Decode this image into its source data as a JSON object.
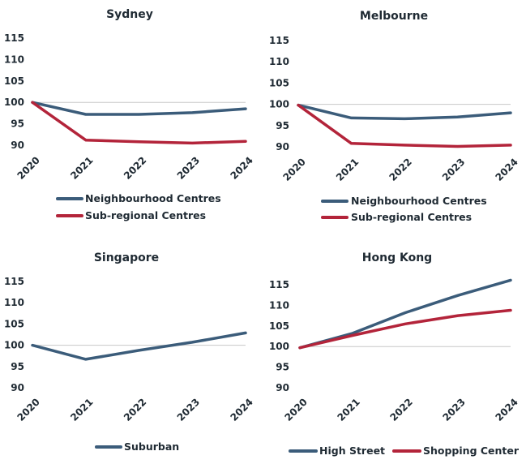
{
  "chart_data": [
    {
      "type": "line",
      "title": "Sydney",
      "categories": [
        "2020",
        "2021",
        "2022",
        "2023",
        "2024"
      ],
      "y_ticks": [
        "115",
        "110",
        "105",
        "100",
        "95",
        "90"
      ],
      "ylim": [
        90,
        115
      ],
      "reference_line": 100,
      "legend_position": "bottom",
      "series": [
        {
          "name": "Neighbourhood Centres",
          "color": "#3b5c7a",
          "values": [
            100,
            97.2,
            97.2,
            97.6,
            98.5
          ]
        },
        {
          "name": "Sub-regional Centres",
          "color": "#b3243a",
          "values": [
            100,
            91.2,
            90.8,
            90.5,
            90.9
          ]
        }
      ]
    },
    {
      "type": "line",
      "title": "Melbourne",
      "categories": [
        "2020",
        "2021",
        "2022",
        "2023",
        "2024"
      ],
      "y_ticks": [
        "115",
        "110",
        "105",
        "100",
        "95",
        "90"
      ],
      "ylim": [
        90,
        115
      ],
      "reference_line": 100,
      "legend_position": "bottom",
      "series": [
        {
          "name": "Neighbourhood Centres",
          "color": "#3b5c7a",
          "values": [
            99.8,
            96.8,
            96.6,
            97.0,
            98.0
          ]
        },
        {
          "name": "Sub-regional Centres",
          "color": "#b3243a",
          "values": [
            99.8,
            90.8,
            90.4,
            90.1,
            90.4
          ]
        }
      ]
    },
    {
      "type": "line",
      "title": "Singapore",
      "categories": [
        "2020",
        "2021",
        "2022",
        "2023",
        "2024"
      ],
      "y_ticks": [
        "115",
        "110",
        "105",
        "100",
        "95",
        "90"
      ],
      "ylim": [
        90,
        115
      ],
      "reference_line": 100,
      "legend_position": "bottom",
      "series": [
        {
          "name": "Suburban",
          "color": "#3b5c7a",
          "values": [
            100,
            96.7,
            98.8,
            100.7,
            102.9
          ]
        }
      ]
    },
    {
      "type": "line",
      "title": "Hong Kong",
      "categories": [
        "2020",
        "2021",
        "2022",
        "2023",
        "2024"
      ],
      "y_ticks": [
        "115",
        "110",
        "105",
        "100",
        "95",
        "90"
      ],
      "ylim": [
        90,
        115
      ],
      "reference_line": 100,
      "legend_position": "bottom",
      "series": [
        {
          "name": "High Street",
          "color": "#3b5c7a",
          "values": [
            99.7,
            103.2,
            108.2,
            112.4,
            116.1
          ]
        },
        {
          "name": "Shopping Center",
          "color": "#b3243a",
          "values": [
            99.7,
            102.7,
            105.5,
            107.5,
            108.8
          ]
        }
      ]
    }
  ]
}
